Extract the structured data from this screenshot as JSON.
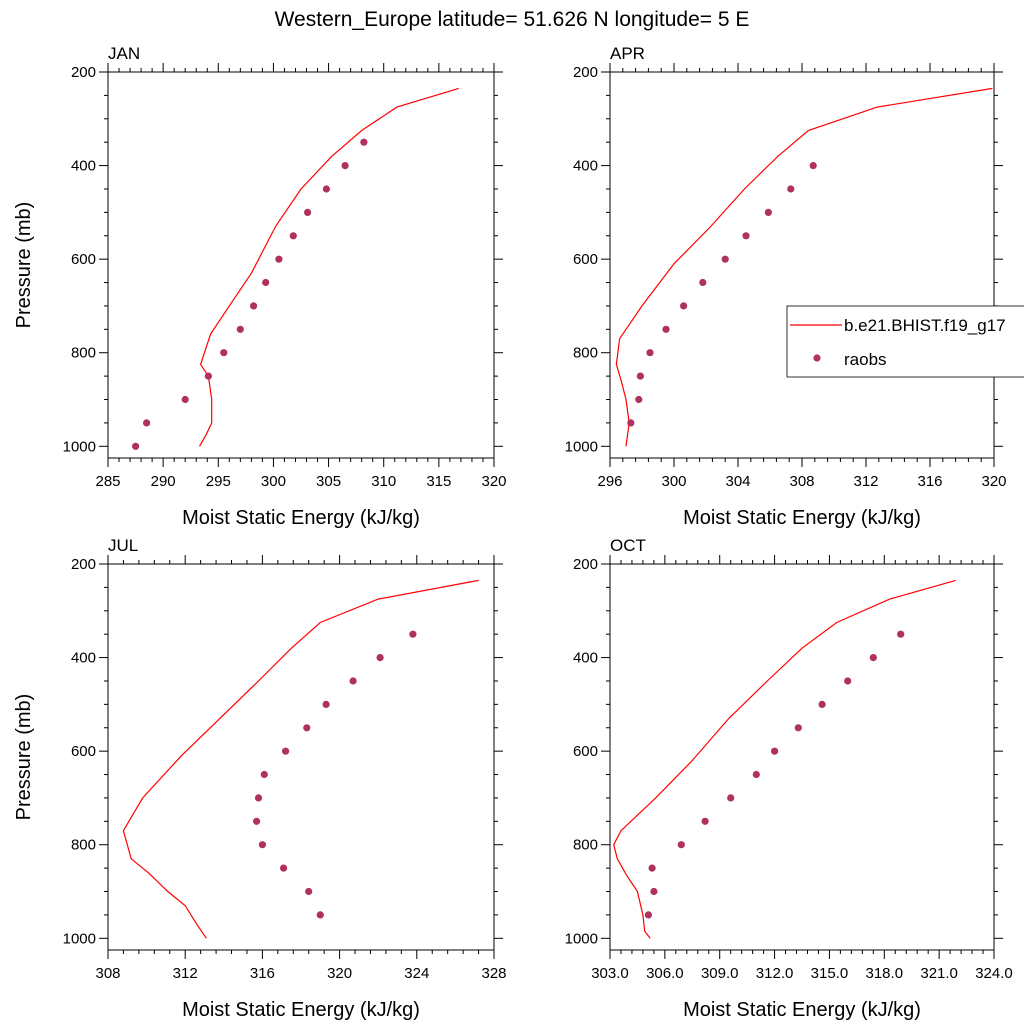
{
  "title": "Western_Europe  latitude= 51.626 N longitude= 5 E",
  "colors": {
    "model": "#ff0000",
    "obs": "#b03060"
  },
  "legend": {
    "placement": "right-of-APR-panel",
    "model_label": "b.e21.BHIST.f19_g17",
    "obs_label": "raobs"
  },
  "chart_data": [
    {
      "type": "line",
      "panel": "JAN",
      "title": "JAN",
      "xlabel": "Moist Static Energy (kJ/kg)",
      "ylabel": "Pressure (mb)",
      "xlim": [
        285,
        320
      ],
      "ylim": [
        1025,
        200
      ],
      "xticks": [
        285,
        290,
        295,
        300,
        305,
        310,
        315,
        320
      ],
      "xtick_labels": [
        "285",
        "290",
        "295",
        "300",
        "305",
        "310",
        "315",
        "320"
      ],
      "yticks": [
        200,
        400,
        600,
        800,
        1000
      ],
      "ytick_labels": [
        "200",
        "400",
        "600",
        "800",
        "1000"
      ],
      "series": [
        {
          "name": "b.e21.BHIST.f19_g17",
          "kind": "line",
          "x": [
            293.3,
            293.9,
            294.4,
            294.4,
            294.1,
            293.4,
            294.3,
            296.0,
            298.0,
            300.2,
            302.5,
            305.3,
            308.0,
            311.2,
            316.8
          ],
          "y": [
            1000,
            975,
            950,
            900,
            850,
            825,
            760,
            700,
            630,
            530,
            450,
            380,
            325,
            275,
            235
          ]
        },
        {
          "name": "raobs",
          "kind": "scatter",
          "x": [
            287.5,
            288.5,
            292.0,
            294.1,
            295.5,
            297.0,
            298.2,
            299.3,
            300.5,
            301.8,
            303.1,
            304.8,
            306.5,
            308.2
          ],
          "y": [
            1000,
            950,
            900,
            850,
            800,
            750,
            700,
            650,
            600,
            550,
            500,
            450,
            400,
            350
          ]
        }
      ],
      "show_ylabel": true,
      "show_legend": false
    },
    {
      "type": "line",
      "panel": "APR",
      "title": "APR",
      "xlabel": "Moist Static Energy (kJ/kg)",
      "ylabel": "",
      "xlim": [
        296,
        320
      ],
      "ylim": [
        1025,
        200
      ],
      "xticks": [
        296,
        300,
        304,
        308,
        312,
        316,
        320
      ],
      "xtick_labels": [
        "296",
        "300",
        "304",
        "308",
        "312",
        "316",
        "320"
      ],
      "yticks": [
        200,
        400,
        600,
        800,
        1000
      ],
      "ytick_labels": [
        "200",
        "400",
        "600",
        "800",
        "1000"
      ],
      "series": [
        {
          "name": "b.e21.BHIST.f19_g17",
          "kind": "line",
          "x": [
            297.0,
            297.1,
            297.2,
            297.0,
            296.7,
            296.4,
            296.6,
            298.0,
            300.0,
            302.3,
            304.4,
            306.5,
            308.4,
            312.7,
            319.9
          ],
          "y": [
            1000,
            975,
            950,
            900,
            860,
            825,
            770,
            700,
            610,
            530,
            450,
            380,
            325,
            275,
            235
          ]
        },
        {
          "name": "raobs",
          "kind": "scatter",
          "x": [
            297.3,
            297.8,
            297.9,
            298.5,
            299.5,
            300.6,
            301.8,
            303.2,
            304.5,
            305.9,
            307.3,
            308.7
          ],
          "y": [
            950,
            900,
            850,
            800,
            750,
            700,
            650,
            600,
            550,
            500,
            450,
            400
          ]
        }
      ],
      "show_ylabel": false,
      "show_legend": true
    },
    {
      "type": "line",
      "panel": "JUL",
      "title": "JUL",
      "xlabel": "Moist Static Energy (kJ/kg)",
      "ylabel": "Pressure (mb)",
      "xlim": [
        308,
        328
      ],
      "ylim": [
        1025,
        200
      ],
      "xticks": [
        308,
        312,
        316,
        320,
        324,
        328
      ],
      "xtick_labels": [
        "308",
        "312",
        "316",
        "320",
        "324",
        "328"
      ],
      "yticks": [
        200,
        400,
        600,
        800,
        1000
      ],
      "ytick_labels": [
        "200",
        "400",
        "600",
        "800",
        "1000"
      ],
      "series": [
        {
          "name": "b.e21.BHIST.f19_g17",
          "kind": "line",
          "x": [
            313.1,
            312.6,
            312.0,
            311.1,
            310.1,
            309.2,
            308.8,
            309.8,
            311.8,
            313.8,
            315.8,
            317.5,
            319.0,
            322.0,
            327.2
          ],
          "y": [
            1000,
            970,
            930,
            900,
            860,
            830,
            770,
            700,
            610,
            530,
            450,
            380,
            325,
            275,
            235
          ]
        },
        {
          "name": "raobs",
          "kind": "scatter",
          "x": [
            319.0,
            318.4,
            317.1,
            316.0,
            315.7,
            315.8,
            316.1,
            317.2,
            318.3,
            319.3,
            320.7,
            322.1,
            323.8
          ],
          "y": [
            950,
            900,
            850,
            800,
            750,
            700,
            650,
            600,
            550,
            500,
            450,
            400,
            350
          ]
        }
      ],
      "show_ylabel": true,
      "show_legend": false
    },
    {
      "type": "line",
      "panel": "OCT",
      "title": "OCT",
      "xlabel": "Moist Static Energy (kJ/kg)",
      "ylabel": "",
      "xlim": [
        303,
        324
      ],
      "ylim": [
        1025,
        200
      ],
      "xticks": [
        303,
        306,
        309,
        312,
        315,
        318,
        321,
        324
      ],
      "xtick_labels": [
        "303.0",
        "306.0",
        "309.0",
        "312.0",
        "315.0",
        "318.0",
        "321.0",
        "324.0"
      ],
      "yticks": [
        200,
        400,
        600,
        800,
        1000
      ],
      "ytick_labels": [
        "200",
        "400",
        "600",
        "800",
        "1000"
      ],
      "series": [
        {
          "name": "b.e21.BHIST.f19_g17",
          "kind": "line",
          "x": [
            305.2,
            304.9,
            304.8,
            304.5,
            303.9,
            303.4,
            303.2,
            303.6,
            305.5,
            307.5,
            309.5,
            311.6,
            313.5,
            315.4,
            318.3,
            321.9
          ],
          "y": [
            1000,
            985,
            950,
            900,
            865,
            830,
            800,
            770,
            700,
            620,
            530,
            450,
            380,
            325,
            275,
            235
          ]
        },
        {
          "name": "raobs",
          "kind": "scatter",
          "x": [
            305.1,
            305.4,
            305.3,
            306.9,
            308.2,
            309.6,
            311.0,
            312.0,
            313.3,
            314.6,
            316.0,
            317.4,
            318.9
          ],
          "y": [
            950,
            900,
            850,
            800,
            750,
            700,
            650,
            600,
            550,
            500,
            450,
            400,
            350
          ]
        }
      ],
      "show_ylabel": false,
      "show_legend": false
    }
  ]
}
